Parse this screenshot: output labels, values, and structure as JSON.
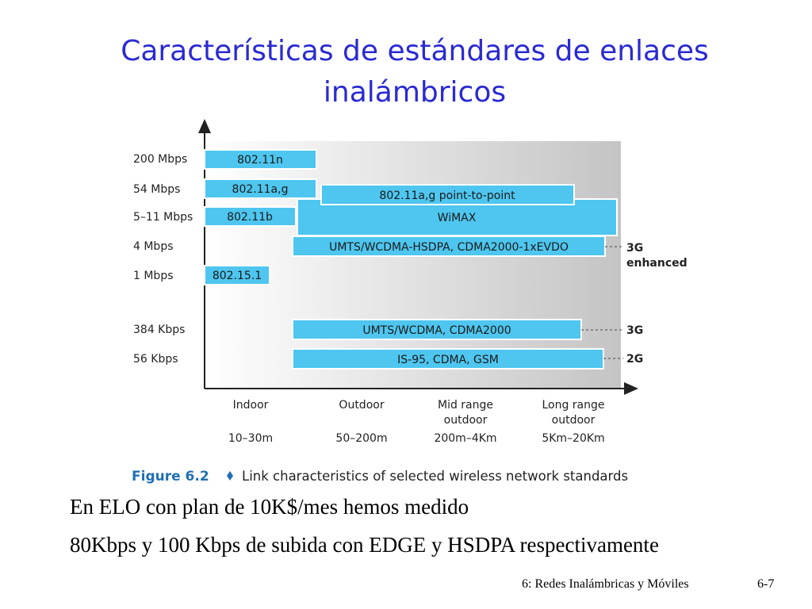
{
  "title": {
    "lines": [
      "Características de estándares de enlaces",
      "inalámbricos"
    ]
  },
  "figure": {
    "rate_labels": [
      "200 Mbps",
      "54 Mbps",
      "5–11 Mbps",
      "4 Mbps",
      "1 Mbps",
      "384 Kbps",
      "56 Kbps"
    ],
    "bars": [
      "802.11n",
      "802.11a,g",
      "802.11a,g point-to-point",
      "802.11b",
      "WiMAX",
      "UMTS/WCDMA-HSDPA, CDMA2000-1xEVDO",
      "802.15.1",
      "UMTS/WCDMA, CDMA2000",
      "IS-95, CDMA, GSM"
    ],
    "generations": [
      "3G",
      "enhanced",
      "3G",
      "2G"
    ],
    "ranges": [
      [
        "Indoor"
      ],
      [
        "Outdoor"
      ],
      [
        "Mid range",
        "outdoor"
      ],
      [
        "Long range",
        "outdoor"
      ]
    ],
    "distances": [
      "10–30m",
      "50–200m",
      "200m–4Km",
      "5Km–20Km"
    ],
    "caption": {
      "label": "Figure 6.2",
      "text": "Link characteristics of selected wireless network standards"
    }
  },
  "body": [
    "En ELO con plan de 10K$/mes hemos medido",
    "80Kbps y 100 Kbps de subida con EDGE y HSDPA respectivamente"
  ],
  "footer": {
    "section": "6: Redes Inalámbricas y Móviles",
    "page": "6-7"
  }
}
